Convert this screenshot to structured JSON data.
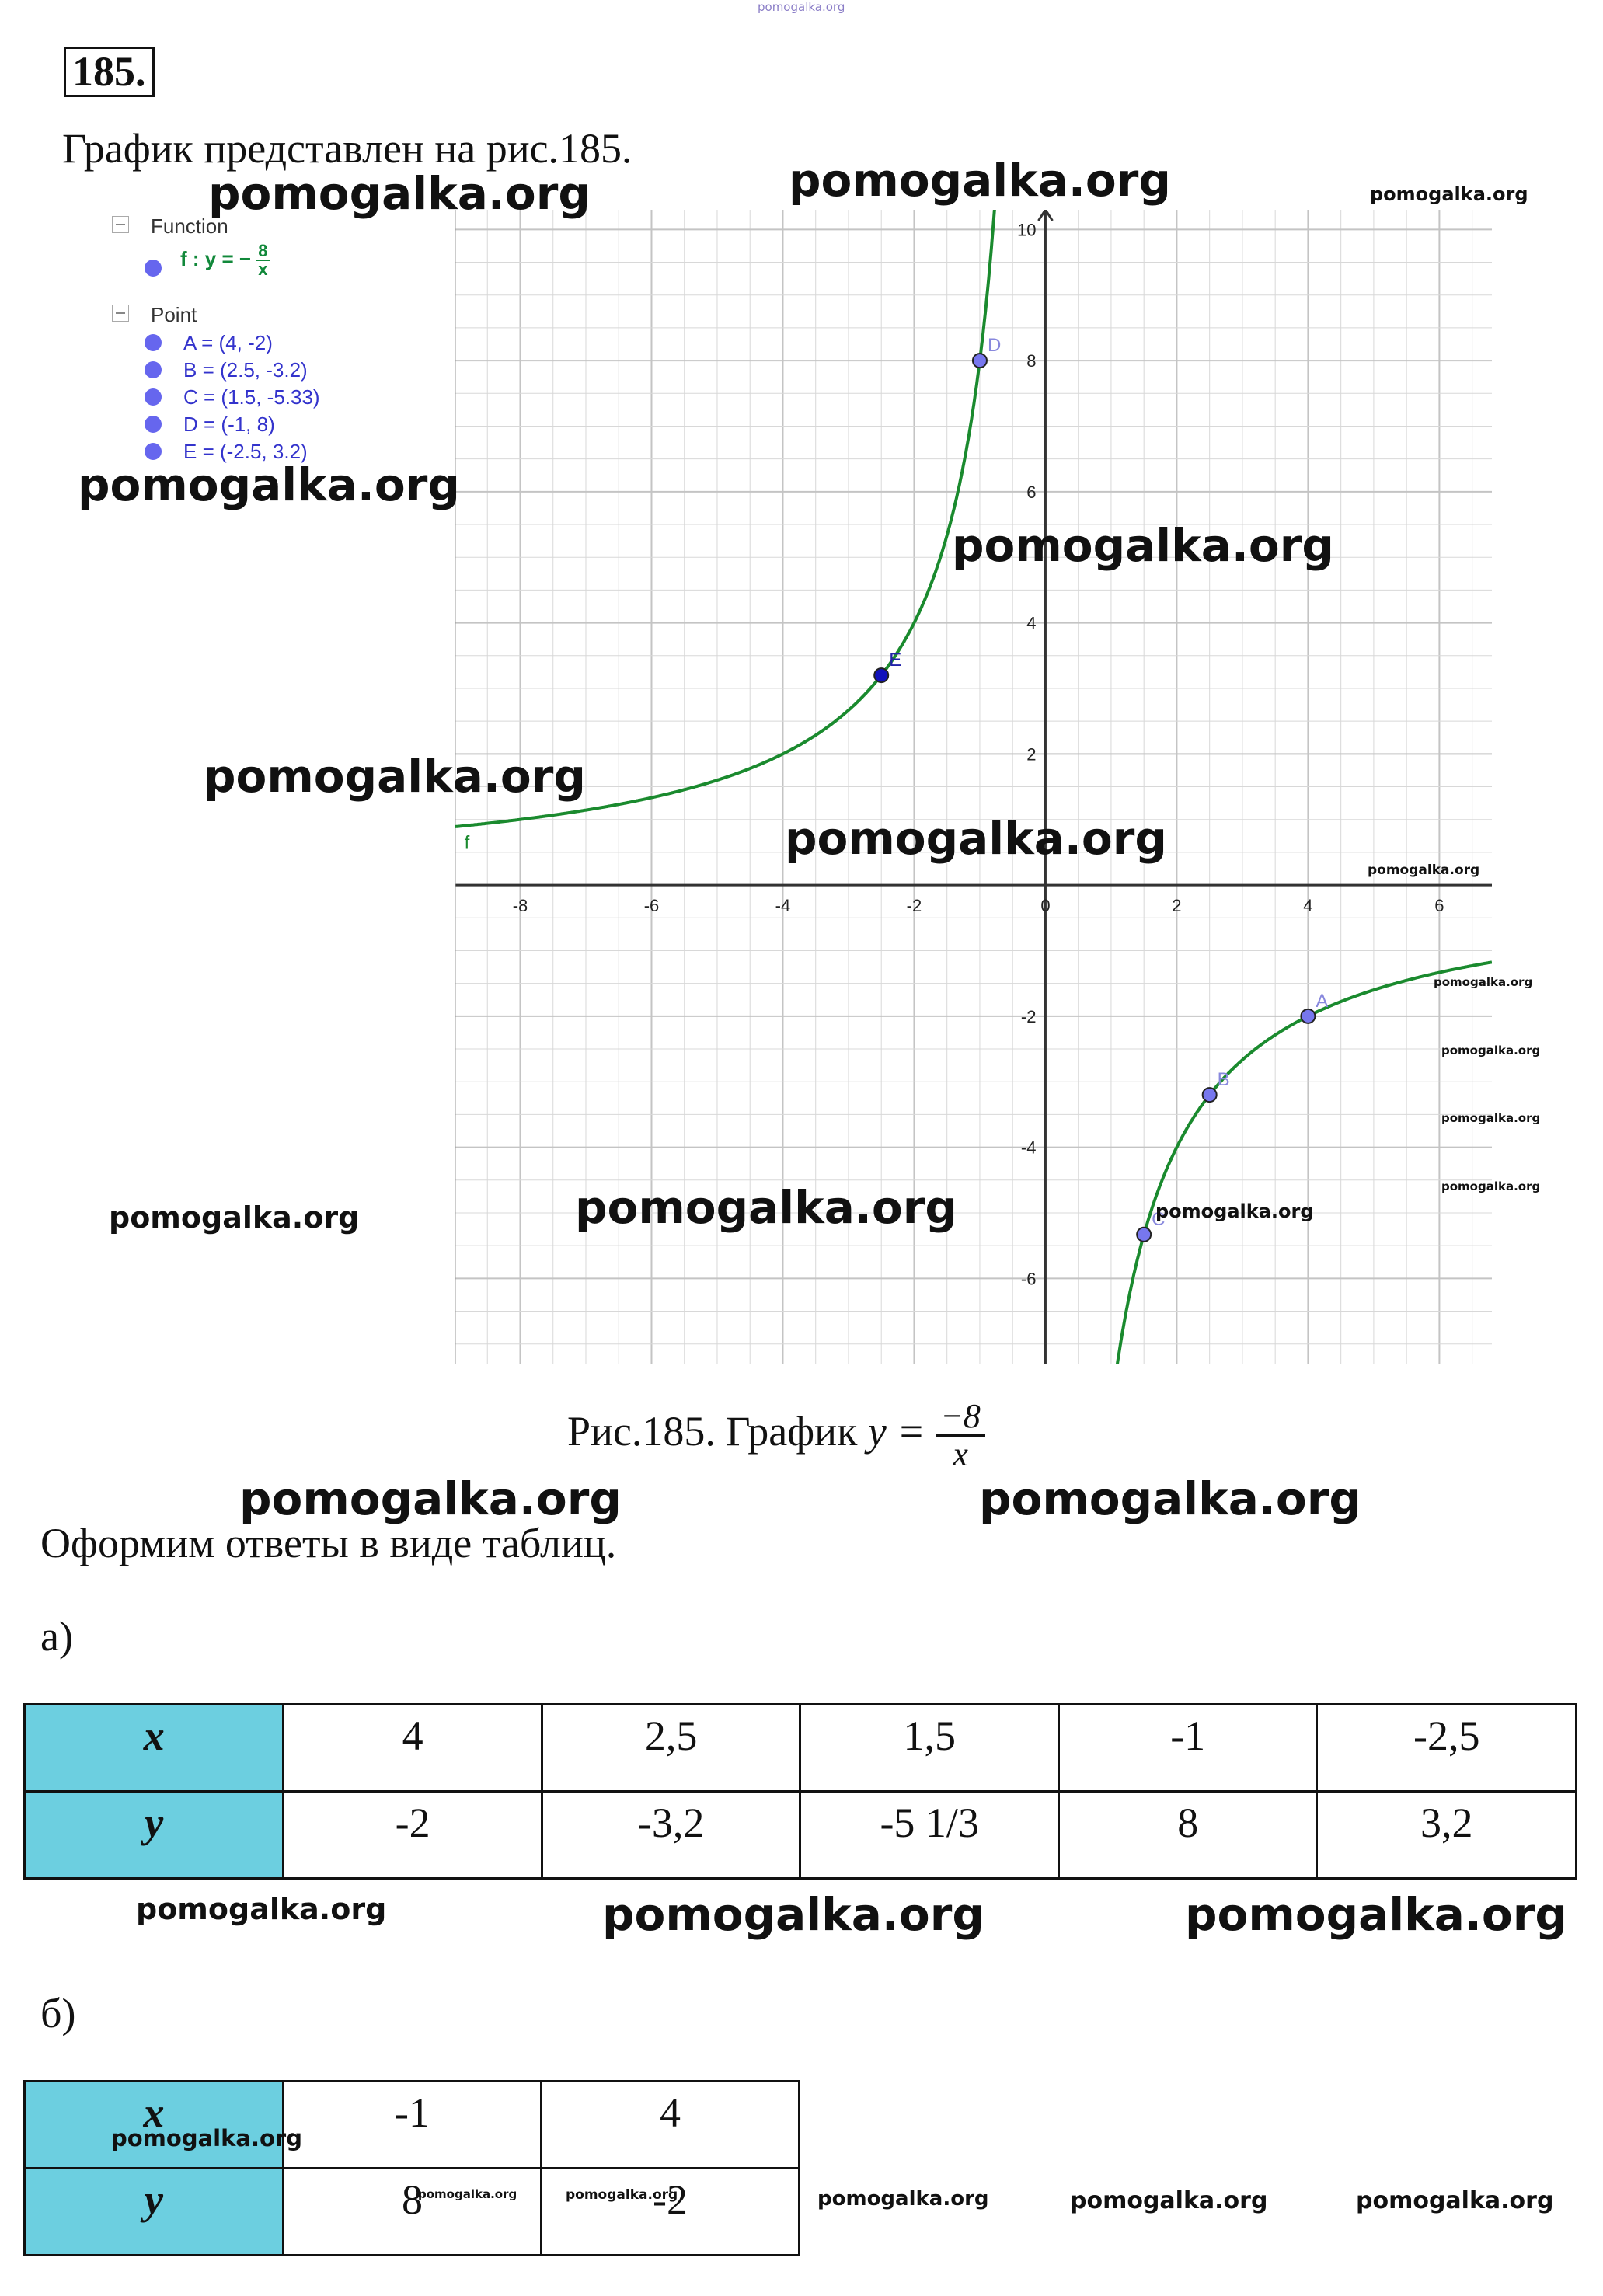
{
  "problem_number": "185.",
  "intro": "График представлен на рис.185.",
  "legend": {
    "function_header": "Function",
    "function_name": "f : y = −",
    "function_num": "8",
    "function_den": "x",
    "point_header": "Point",
    "points": [
      {
        "label": "A = (4, -2)",
        "x": 4,
        "y": -2
      },
      {
        "label": "B = (2.5, -3.2)",
        "x": 2.5,
        "y": -3.2
      },
      {
        "label": "C = (1.5, -5.33)",
        "x": 1.5,
        "y": -5.33
      },
      {
        "label": "D = (-1, 8)",
        "x": -1,
        "y": 8
      },
      {
        "label": "E = (-2.5, 3.2)",
        "x": -2.5,
        "y": 3.2
      }
    ]
  },
  "chart_data": {
    "type": "line",
    "function": "y = -8/x",
    "curve_label": "f",
    "xlim": [
      -9,
      6.8
    ],
    "ylim": [
      -7.3,
      10.3
    ],
    "x_ticks": [
      -8,
      -6,
      -4,
      -2,
      0,
      2,
      4,
      6
    ],
    "x_tick_labels": [
      "-8",
      "-6",
      "-4",
      "-2",
      "0",
      "2",
      "4",
      "6"
    ],
    "y_ticks": [
      -6,
      -4,
      -2,
      2,
      4,
      6,
      8,
      10
    ],
    "y_tick_labels": [
      "-6",
      "-4",
      "-2",
      "2",
      "4",
      "6",
      "8",
      "10"
    ],
    "points": [
      {
        "name": "A",
        "x": 4,
        "y": -2
      },
      {
        "name": "B",
        "x": 2.5,
        "y": -3.2
      },
      {
        "name": "C",
        "x": 1.5,
        "y": -5.33
      },
      {
        "name": "D",
        "x": -1,
        "y": 8
      },
      {
        "name": "E",
        "x": -2.5,
        "y": 3.2
      }
    ],
    "grid": true,
    "colors": {
      "curve": "#1a8a2e",
      "point_fill": "#7777ee",
      "point_fill_e": "#1111bb",
      "axis": "#333333",
      "grid": "#d8d8d8"
    }
  },
  "caption": {
    "text": "Рис.185. График",
    "formula_lhs": "y =",
    "num": "−8",
    "den": "x"
  },
  "answer_intro": "Оформим ответы в виде таблиц.",
  "part_a": {
    "label": "а)",
    "x_header": "x",
    "y_header": "y",
    "x_values": [
      "4",
      "2,5",
      "1,5",
      "-1",
      "-2,5"
    ],
    "y_values": [
      "-2",
      "-3,2",
      "-5 1/3",
      "8",
      "3,2"
    ]
  },
  "part_b": {
    "label": "б)",
    "x_header": "x",
    "y_header": "y",
    "x_values": [
      "-1",
      "4"
    ],
    "y_values": [
      "8",
      "-2"
    ]
  },
  "watermark": "pomogalka.org",
  "colors": {
    "table_header_bg": "#6ccfe0"
  }
}
